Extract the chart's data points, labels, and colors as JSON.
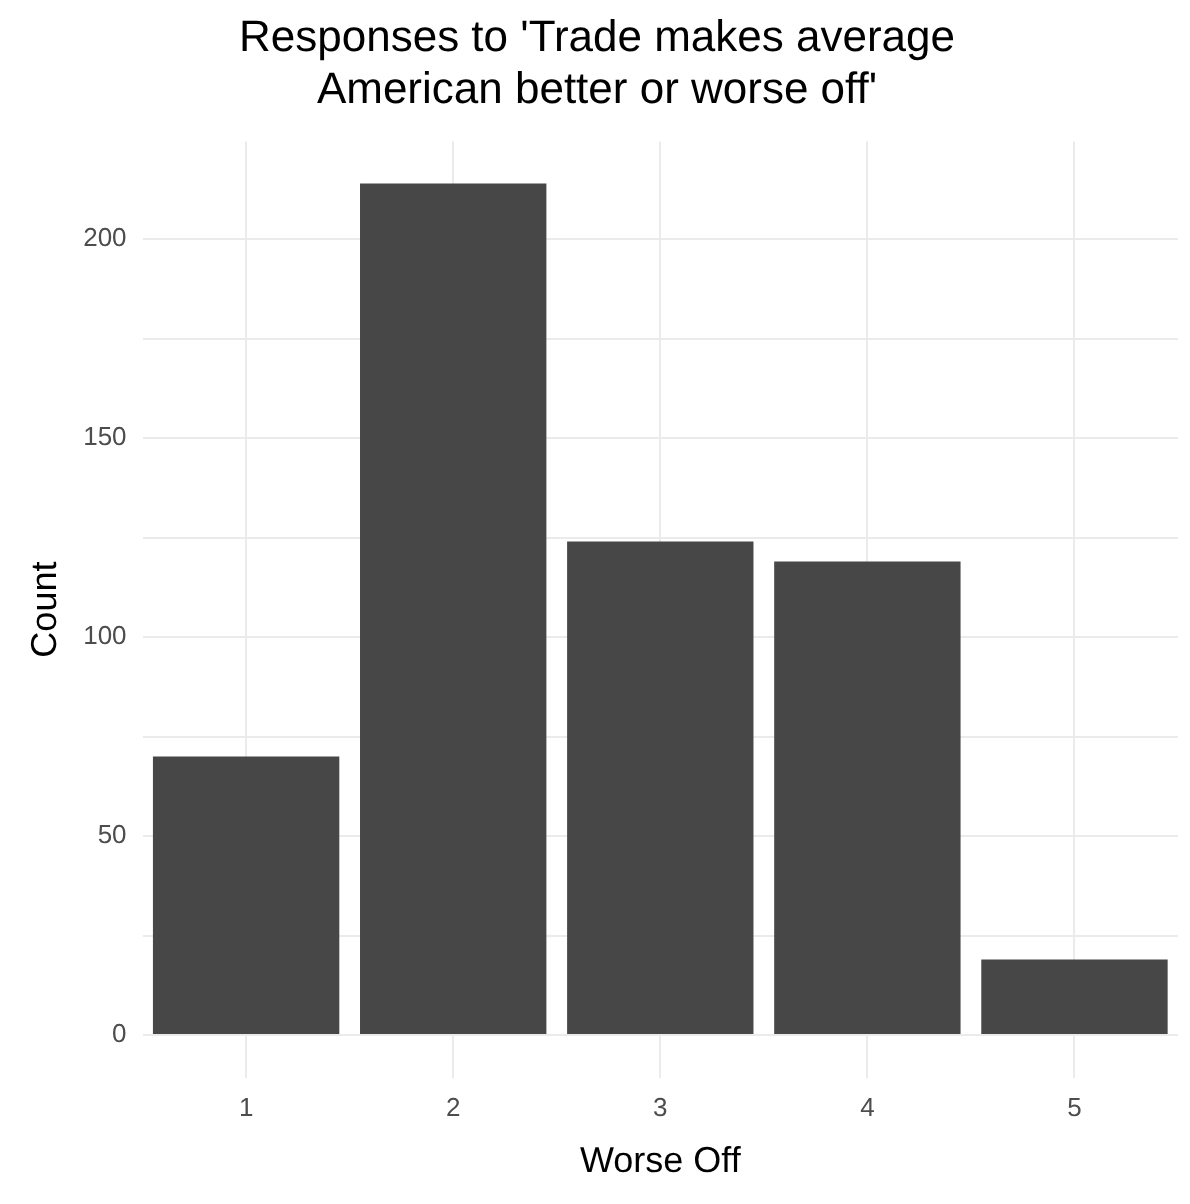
{
  "chart_data": {
    "type": "bar",
    "title": "Responses to 'Trade makes average\nAmerican better or worse off'",
    "xlabel": "Worse Off",
    "ylabel": "Count",
    "categories": [
      "1",
      "2",
      "3",
      "4",
      "5"
    ],
    "values": [
      70,
      214,
      124,
      119,
      19
    ],
    "color": "#474747",
    "ylim": [
      -10.7,
      224.5
    ],
    "yticks": [
      0,
      {
        "value": 25,
        "label": null
      },
      50,
      {
        "value": 75,
        "label": null
      },
      100,
      {
        "value": 125,
        "label": null
      },
      150,
      {
        "value": 175,
        "label": null
      },
      200
    ],
    "grid": true
  }
}
